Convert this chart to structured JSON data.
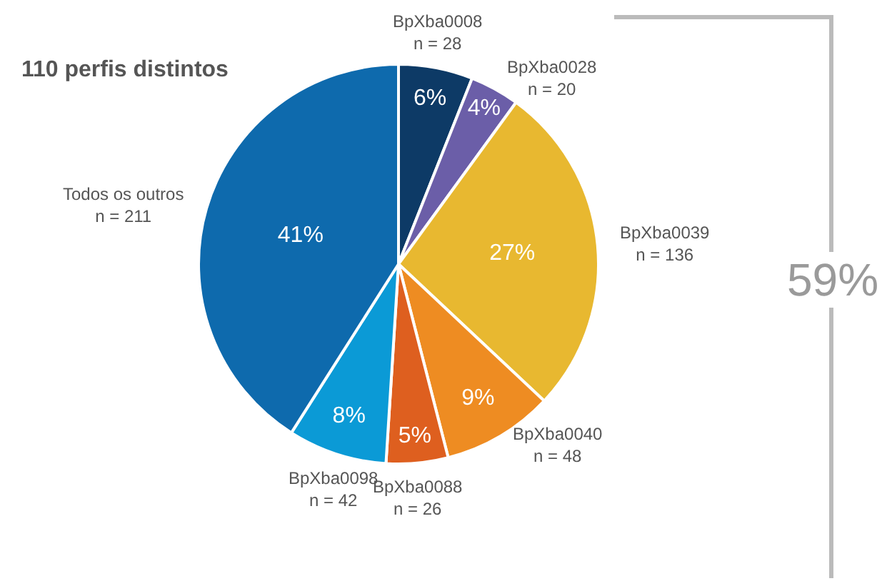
{
  "chart_data": {
    "type": "pie",
    "title": "110 perfis distintos",
    "categories": [
      "BpXba0008\nn = 28",
      "BpXba0028\nn = 20",
      "BpXba0039\nn = 136",
      "BpXba0040\nn = 48",
      "BpXba0088\nn = 26",
      "BpXba0098\nn = 42",
      "Todos os outros\nn = 211"
    ],
    "values": [
      6,
      4,
      27,
      9,
      5,
      8,
      41
    ],
    "value_labels": [
      "6%",
      "4%",
      "27%",
      "9%",
      "5%",
      "8%",
      "41%"
    ],
    "colors": [
      "#0d3a66",
      "#6b5ea8",
      "#e8b830",
      "#ee8c22",
      "#de5f1f",
      "#0b9ad6",
      "#0e6aad"
    ],
    "annotations": [
      "59%"
    ]
  }
}
